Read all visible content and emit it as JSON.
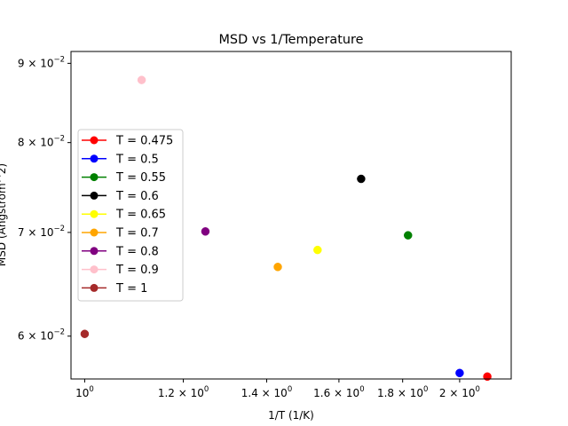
{
  "chart_data": {
    "type": "scatter",
    "title": "MSD vs 1/Temperature",
    "xlabel": "1/T (1/K)",
    "ylabel": "MSD (Angstrom^2)",
    "xscale": "log",
    "yscale": "log",
    "xlim": [
      0.975,
      2.2
    ],
    "ylim": [
      0.0563,
      0.0916
    ],
    "xticks": [
      {
        "value": 1.0,
        "mantissa": "10",
        "exponent": "0"
      },
      {
        "value": 1.2,
        "mantissa": "1.2 × 10",
        "exponent": "0"
      },
      {
        "value": 1.4,
        "mantissa": "1.4 × 10",
        "exponent": "0"
      },
      {
        "value": 1.6,
        "mantissa": "1.6 × 10",
        "exponent": "0"
      },
      {
        "value": 1.8,
        "mantissa": "1.8 × 10",
        "exponent": "0"
      },
      {
        "value": 2.0,
        "mantissa": "2 × 10",
        "exponent": "0"
      }
    ],
    "yticks": [
      {
        "value": 0.06,
        "mantissa": "6 × 10",
        "exponent": "−2"
      },
      {
        "value": 0.07,
        "mantissa": "7 × 10",
        "exponent": "−2"
      },
      {
        "value": 0.08,
        "mantissa": "8 × 10",
        "exponent": "−2"
      },
      {
        "value": 0.09,
        "mantissa": "9 × 10",
        "exponent": "−2"
      }
    ],
    "grid": false,
    "legend_position": "center-left",
    "series": [
      {
        "name": "T = 0.475",
        "color": "#ff0000",
        "x": [
          2.105
        ],
        "y": [
          0.0565
        ]
      },
      {
        "name": "T = 0.5",
        "color": "#0000ff",
        "x": [
          2.0
        ],
        "y": [
          0.0568
        ]
      },
      {
        "name": "T = 0.55",
        "color": "#008000",
        "x": [
          1.818
        ],
        "y": [
          0.0697
        ]
      },
      {
        "name": "T = 0.6",
        "color": "#000000",
        "x": [
          1.667
        ],
        "y": [
          0.0758
        ]
      },
      {
        "name": "T = 0.65",
        "color": "#ffff00",
        "x": [
          1.538
        ],
        "y": [
          0.0682
        ]
      },
      {
        "name": "T = 0.7",
        "color": "#ffa500",
        "x": [
          1.429
        ],
        "y": [
          0.0665
        ]
      },
      {
        "name": "T = 0.8",
        "color": "#800080",
        "x": [
          1.25
        ],
        "y": [
          0.0701
        ]
      },
      {
        "name": "T = 0.9",
        "color": "#ffc0cb",
        "x": [
          1.111
        ],
        "y": [
          0.0878
        ]
      },
      {
        "name": "T = 1",
        "color": "#a52a2a",
        "x": [
          1.0
        ],
        "y": [
          0.0602
        ]
      }
    ]
  }
}
